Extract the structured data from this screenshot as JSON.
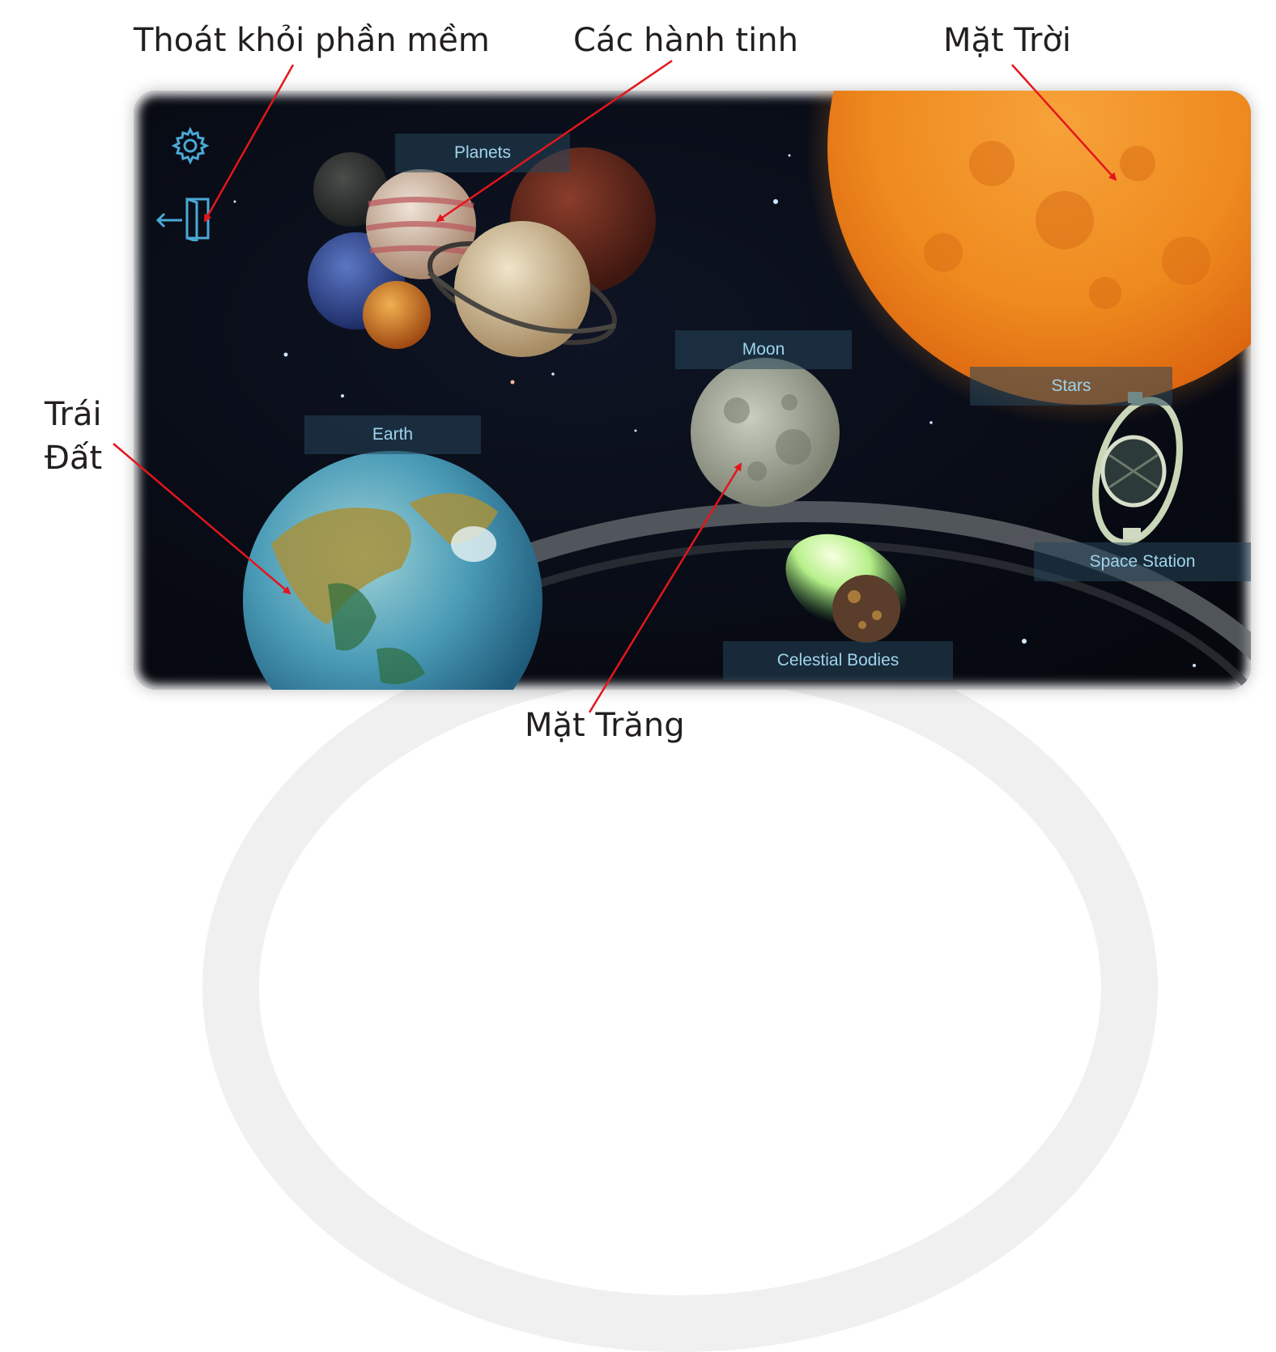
{
  "callouts": {
    "exit": "Thoát khỏi phần mềm",
    "planets": "Các hành tinh",
    "sun": "Mặt Trời",
    "earth_line1": "Trái",
    "earth_line2": "Đất",
    "moon": "Mặt Trăng"
  },
  "menu": {
    "planets": "Planets",
    "moon": "Moon",
    "earth": "Earth",
    "stars": "Stars",
    "space_station": "Space Station",
    "celestial_bodies": "Celestial Bodies"
  },
  "icons": {
    "settings": "gear-icon",
    "exit": "exit-door-icon"
  },
  "colors": {
    "arrow": "#e3161c",
    "menu_text": "#9fd4ec",
    "menu_tile": "#26465a",
    "sun": "#f08a1c",
    "space": "#070a12"
  }
}
